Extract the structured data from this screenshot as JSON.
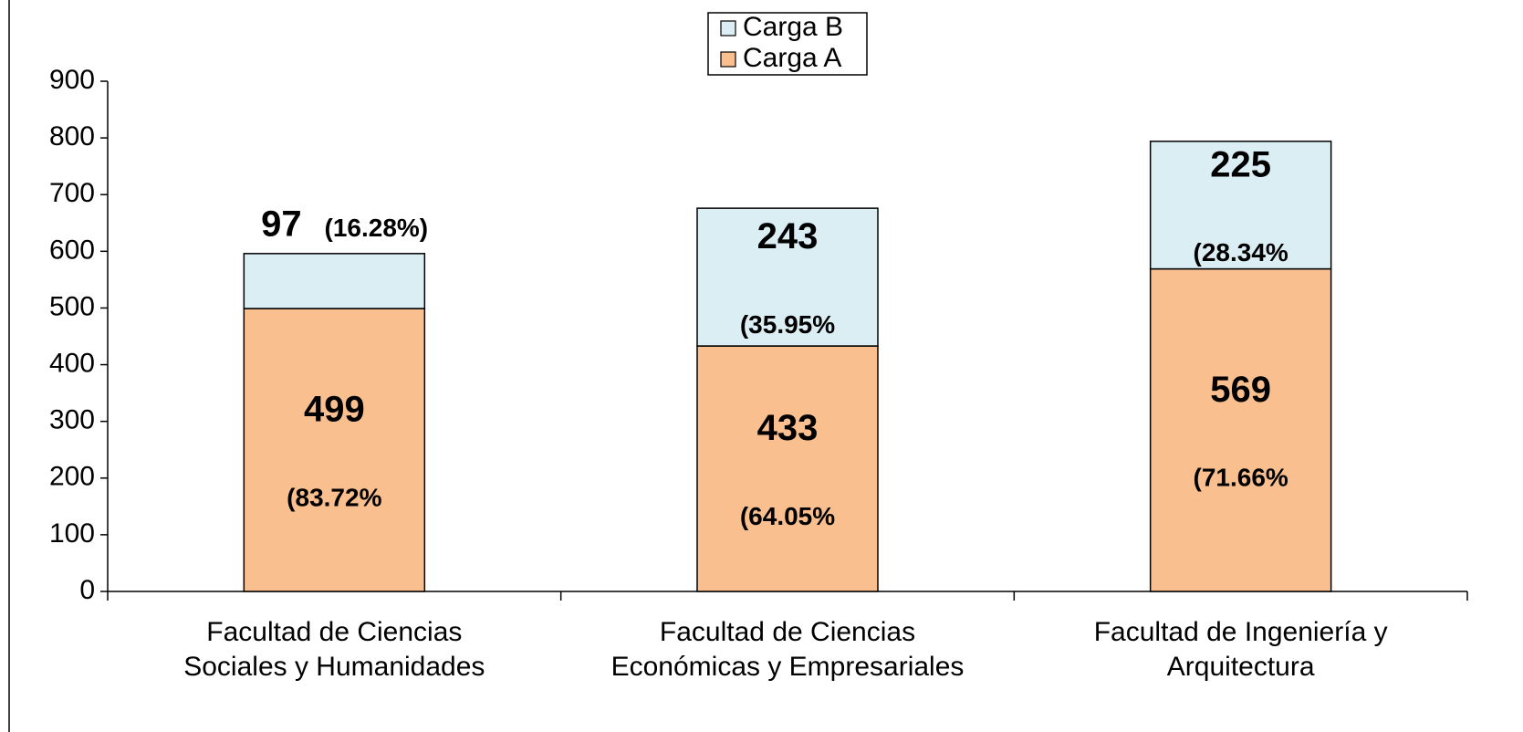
{
  "chart_data": {
    "type": "stacked_bar",
    "categories": [
      [
        "Facultad de Ciencias",
        "Sociales y Humanidades"
      ],
      [
        "Facultad de Ciencias",
        "Económicas y Empresariales"
      ],
      [
        "Facultad de Ingeniería y",
        "Arquitectura"
      ]
    ],
    "series": [
      {
        "name": "Carga A",
        "color": "#f9bf8f",
        "values": [
          499,
          433,
          569
        ],
        "percent_labels": [
          "(83.72%",
          "(64.05%",
          "(71.66%"
        ]
      },
      {
        "name": "Carga B",
        "color": "#dbeef4",
        "values": [
          97,
          243,
          225
        ],
        "percent_labels": [
          "(16.28%)",
          "(35.95%",
          "(28.34%"
        ]
      }
    ],
    "ylim": [
      0,
      900
    ],
    "yticks": [
      0,
      100,
      200,
      300,
      400,
      500,
      600,
      700,
      800,
      900
    ],
    "grid": false
  }
}
